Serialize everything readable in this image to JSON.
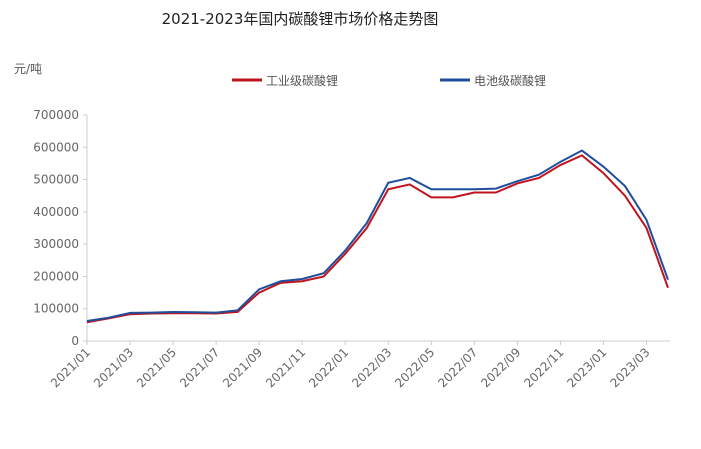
{
  "chart_data": {
    "type": "line",
    "title": "2021-2023年国内碳酸锂市场价格走势图",
    "y_label": "元/吨",
    "x": [
      "2021/01",
      "2021/02",
      "2021/03",
      "2021/04",
      "2021/05",
      "2021/06",
      "2021/07",
      "2021/08",
      "2021/09",
      "2021/10",
      "2021/11",
      "2021/12",
      "2022/01",
      "2022/02",
      "2022/03",
      "2022/04",
      "2022/05",
      "2022/06",
      "2022/07",
      "2022/08",
      "2022/09",
      "2022/10",
      "2022/11",
      "2022/12",
      "2023/01",
      "2023/02",
      "2023/03",
      "2023/04"
    ],
    "series": [
      {
        "name": "工业级碳酸锂",
        "color": "#c0141e",
        "values": [
          58000,
          70000,
          83000,
          85000,
          86000,
          86000,
          85000,
          90000,
          150000,
          180000,
          185000,
          200000,
          270000,
          350000,
          470000,
          485000,
          445000,
          445000,
          460000,
          460000,
          488000,
          505000,
          545000,
          575000,
          520000,
          450000,
          350000,
          165000
        ]
      },
      {
        "name": "电池级碳酸锂",
        "color": "#1f4e9c",
        "values": [
          62000,
          72000,
          87000,
          88000,
          90000,
          89000,
          88000,
          95000,
          160000,
          185000,
          192000,
          210000,
          280000,
          365000,
          490000,
          505000,
          470000,
          470000,
          470000,
          472000,
          495000,
          515000,
          555000,
          590000,
          540000,
          480000,
          375000,
          190000
        ]
      }
    ],
    "xlim": [
      "2021/01",
      "2023/04"
    ],
    "xticks": [
      "2021/01",
      "2021/03",
      "2021/05",
      "2021/07",
      "2021/09",
      "2021/11",
      "2022/01",
      "2022/03",
      "2022/05",
      "2022/07",
      "2022/09",
      "2022/11",
      "2023/01",
      "2023/03"
    ],
    "ylim": [
      0,
      700000
    ],
    "yticks": [
      0,
      100000,
      200000,
      300000,
      400000,
      500000,
      600000,
      700000
    ]
  }
}
